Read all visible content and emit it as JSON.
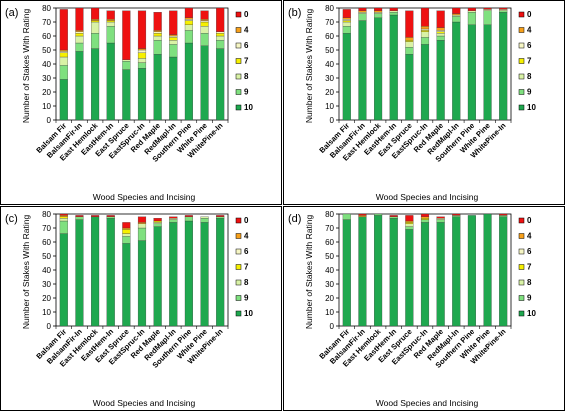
{
  "colors": {
    "r10": "#1fa84f",
    "r9": "#7fe07f",
    "r8": "#d9f2a6",
    "r7": "#f6f000",
    "r6": "#f6f6c4",
    "r4": "#f7a01a",
    "r0": "#ee1111"
  },
  "chart_data": [
    {
      "type": "bar",
      "stacked": true,
      "panel_label": "(a)",
      "xlabel": "Wood Species and Incising",
      "ylabel": "Number of Stakes With Rating",
      "ylim": [
        0,
        80
      ],
      "yticks": [
        "0",
        "10",
        "20",
        "30",
        "40",
        "50",
        "60",
        "70",
        "80"
      ],
      "categories": [
        "Balsam Fir",
        "BalsamFir-In",
        "East Hemlock",
        "EastHem-In",
        "East Spruce",
        "EastSpruc-In",
        "Red Maple",
        "RedMapl-In",
        "Southern Pine",
        "White Pine",
        "WhitePine-In"
      ],
      "legend": [
        "0",
        "4",
        "6",
        "7",
        "8",
        "9",
        "10"
      ],
      "series": [
        {
          "name": "10",
          "values": [
            29,
            49,
            51,
            55,
            36,
            37,
            47,
            45,
            55,
            53,
            51
          ]
        },
        {
          "name": "9",
          "values": [
            10,
            6,
            11,
            12,
            6,
            4,
            10,
            9,
            9,
            9,
            6
          ]
        },
        {
          "name": "8",
          "values": [
            6,
            5,
            8,
            3,
            1,
            3,
            3,
            3,
            4,
            5,
            3
          ]
        },
        {
          "name": "7",
          "values": [
            3,
            2,
            1,
            1,
            0,
            4,
            2,
            2,
            3,
            3,
            2
          ]
        },
        {
          "name": "6",
          "values": [
            1,
            1,
            0,
            0,
            0,
            2,
            1,
            1,
            1,
            1,
            1
          ]
        },
        {
          "name": "4",
          "values": [
            1,
            1,
            1,
            1,
            0,
            1,
            1,
            1,
            1,
            1,
            0
          ]
        },
        {
          "name": "0",
          "values": [
            29,
            16,
            8,
            6,
            35,
            27,
            13,
            17,
            7,
            6,
            17
          ]
        }
      ]
    },
    {
      "type": "bar",
      "stacked": true,
      "panel_label": "(b)",
      "xlabel": "Wood Species and Incising",
      "ylabel": "Number of Stakes With Rating",
      "ylim": [
        0,
        80
      ],
      "yticks": [
        "0",
        "10",
        "20",
        "30",
        "40",
        "50",
        "60",
        "70",
        "80"
      ],
      "categories": [
        "Balsam Fir",
        "BalsamFir-In",
        "East Hemlock",
        "EastHem-In",
        "East Spruce",
        "EastSpruc-In",
        "Red Maple",
        "RedMapl-In",
        "Southern Pine",
        "White Pine",
        "WhitePine-In"
      ],
      "legend": [
        "0",
        "4",
        "6",
        "7",
        "8",
        "9",
        "10"
      ],
      "series": [
        {
          "name": "10",
          "values": [
            62,
            71,
            73,
            75,
            47,
            54,
            57,
            70,
            68,
            68,
            77
          ]
        },
        {
          "name": "9",
          "values": [
            5,
            5,
            3,
            2,
            5,
            5,
            3,
            4,
            9,
            10,
            1
          ]
        },
        {
          "name": "8",
          "values": [
            3,
            1,
            1,
            1,
            4,
            4,
            2,
            1,
            1,
            1,
            1
          ]
        },
        {
          "name": "7",
          "values": [
            1,
            0,
            0,
            0,
            1,
            1,
            1,
            0,
            0,
            0,
            0
          ]
        },
        {
          "name": "6",
          "values": [
            1,
            0,
            0,
            0,
            0,
            1,
            1,
            0,
            0,
            0,
            0
          ]
        },
        {
          "name": "4",
          "values": [
            1,
            1,
            1,
            0,
            2,
            2,
            2,
            1,
            0,
            0,
            0
          ]
        },
        {
          "name": "0",
          "values": [
            6,
            2,
            2,
            2,
            19,
            13,
            12,
            4,
            2,
            1,
            1
          ]
        }
      ]
    },
    {
      "type": "bar",
      "stacked": true,
      "panel_label": "(c)",
      "xlabel": "Wood Species and Incising",
      "ylabel": "Number of Stakes With Rating",
      "ylim": [
        0,
        80
      ],
      "yticks": [
        "0",
        "10",
        "20",
        "30",
        "40",
        "50",
        "60",
        "70",
        "80"
      ],
      "categories": [
        "Balsam Fir",
        "BalsamFir-In",
        "East Hemlock",
        "EastHem-In",
        "East Spruce",
        "EastSpruc-In",
        "Red Maple",
        "RedMapl-In",
        "Southern Pine",
        "White Pine",
        "WhitePine-In"
      ],
      "legend": [
        "0",
        "4",
        "6",
        "7",
        "8",
        "9",
        "10"
      ],
      "series": [
        {
          "name": "10",
          "values": [
            66,
            76,
            78,
            77,
            59,
            61,
            71,
            74,
            75,
            74,
            77
          ]
        },
        {
          "name": "9",
          "values": [
            9,
            2,
            0,
            1,
            5,
            9,
            2,
            2,
            3,
            3,
            1
          ]
        },
        {
          "name": "8",
          "values": [
            2,
            0,
            0,
            0,
            2,
            3,
            1,
            1,
            0,
            1,
            0
          ]
        },
        {
          "name": "7",
          "values": [
            1,
            0,
            0,
            0,
            3,
            0,
            1,
            0,
            0,
            0,
            0
          ]
        },
        {
          "name": "6",
          "values": [
            0,
            0,
            0,
            0,
            0,
            0,
            0,
            0,
            0,
            0,
            0
          ]
        },
        {
          "name": "4",
          "values": [
            1,
            0,
            0,
            0,
            1,
            1,
            0,
            0,
            0,
            0,
            0
          ]
        },
        {
          "name": "0",
          "values": [
            1,
            1,
            1,
            1,
            4,
            4,
            2,
            1,
            1,
            0,
            1
          ]
        }
      ]
    },
    {
      "type": "bar",
      "stacked": true,
      "panel_label": "(d)",
      "xlabel": "Wood Species and Incising",
      "ylabel": "Number of Stakes With Rating",
      "ylim": [
        0,
        80
      ],
      "yticks": [
        "0",
        "10",
        "20",
        "30",
        "40",
        "50",
        "60",
        "70",
        "80"
      ],
      "categories": [
        "Balsam Fir",
        "BalsamFir-In",
        "East Hemlock",
        "EastHem-In",
        "East Spruce",
        "EastSpruc-In",
        "Red Maple",
        "RedMapl-In",
        "Southern Pine",
        "White Pine",
        "WhitePine-In"
      ],
      "legend": [
        "0",
        "4",
        "6",
        "7",
        "8",
        "9",
        "10"
      ],
      "series": [
        {
          "name": "10",
          "values": [
            76,
            78,
            79,
            77,
            69,
            74,
            74,
            78,
            79,
            80,
            78
          ]
        },
        {
          "name": "9",
          "values": [
            4,
            0,
            1,
            1,
            2,
            2,
            2,
            1,
            0,
            0,
            1
          ]
        },
        {
          "name": "8",
          "values": [
            0,
            0,
            0,
            0,
            2,
            0,
            1,
            0,
            0,
            0,
            0
          ]
        },
        {
          "name": "7",
          "values": [
            0,
            0,
            0,
            0,
            1,
            1,
            0,
            0,
            0,
            0,
            0
          ]
        },
        {
          "name": "6",
          "values": [
            0,
            0,
            0,
            0,
            0,
            0,
            0,
            0,
            0,
            0,
            0
          ]
        },
        {
          "name": "4",
          "values": [
            0,
            1,
            0,
            0,
            1,
            1,
            0,
            0,
            0,
            0,
            0
          ]
        },
        {
          "name": "0",
          "values": [
            0,
            1,
            0,
            1,
            4,
            2,
            1,
            1,
            0,
            0,
            1
          ]
        }
      ]
    }
  ]
}
